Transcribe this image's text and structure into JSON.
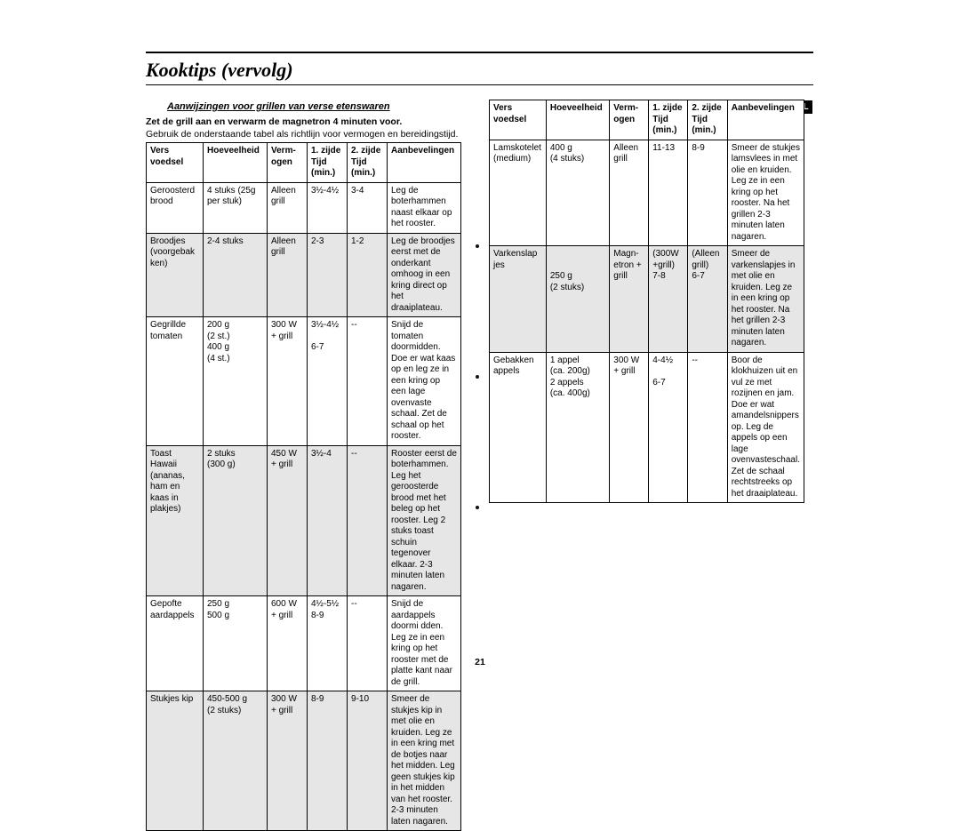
{
  "title": "Kooktips (vervolg)",
  "subheading": "Aanwijzingen voor grillen van verse etenswaren",
  "instruction": "Zet de grill aan en verwarm de magnetron 4 minuten voor.",
  "note": "Gebruik de onderstaande tabel als richtlijn voor vermogen en bereidingstijd.",
  "lang_badge": "NL",
  "page_number": "21",
  "columns": {
    "food": "Vers voedsel",
    "qty": "Hoeveelheid",
    "power": "Verm-ogen",
    "side1": "1. zijde Tijd (min.)",
    "side2": "2. zijde Tijd (min.)",
    "rec": "Aanbevelingen"
  },
  "left_rows": [
    {
      "shade": false,
      "food": "Geroosterd brood",
      "qty": "4 stuks (25g per stuk)",
      "power": "Alleen grill",
      "s1": "3½-4½",
      "s2": "3-4",
      "rec": "Leg de boterhammen naast elkaar op het rooster."
    },
    {
      "shade": true,
      "food": "Broodjes (voorgebak ken)",
      "qty": "2-4 stuks",
      "power": "Alleen grill",
      "s1": "2-3",
      "s2": "1-2",
      "rec": "Leg de broodjes eerst met de onderkant omhoog in een kring direct op het draaiplateau."
    },
    {
      "shade": false,
      "food": "Gegrillde tomaten",
      "qty": "200 g\n(2 st.)\n400 g\n(4 st.)",
      "power": "300 W\n+ grill",
      "s1": "3½-4½\n\n6-7",
      "s2": "--",
      "rec": "Snijd de tomaten doormidden. Doe er wat kaas op en leg ze in een kring op een lage ovenvaste schaal. Zet de schaal op het rooster."
    },
    {
      "shade": true,
      "food": "Toast Hawaii (ananas, ham en kaas in plakjes)",
      "qty": "2 stuks\n(300 g)",
      "power": "450 W\n+ grill",
      "s1": "3½-4",
      "s2": "--",
      "rec": "Rooster eerst de boterhammen. Leg het geroosterde brood met het beleg op het rooster. Leg 2 stuks toast schuin tegenover elkaar. 2-3 minuten laten nagaren."
    },
    {
      "shade": false,
      "food": "Gepofte aardappels",
      "qty": "250 g\n500 g",
      "power": "600 W\n+ grill",
      "s1": "4½-5½\n8-9",
      "s2": "--",
      "rec": "Snijd de aardappels doormi dden. Leg ze in een kring op het rooster met de platte kant naar de grill."
    },
    {
      "shade": true,
      "food": "Stukjes kip",
      "qty": "450-500 g\n(2 stuks)",
      "power": "300 W\n+ grill",
      "s1": "8-9",
      "s2": "9-10",
      "rec": "Smeer de stukjes kip in met olie en kruiden. Leg ze in een kring met de botjes naar het midden. Leg geen stukjes kip in het midden van het rooster. 2-3 minuten laten nagaren."
    }
  ],
  "right_rows": [
    {
      "shade": false,
      "food": "Lamskotelet (medium)",
      "qty": "400 g\n(4 stuks)",
      "power": "Alleen grill",
      "s1": "11-13",
      "s2": "8-9",
      "rec": "Smeer de stukjes lamsvlees in met olie en kruiden. Leg ze in een kring op het rooster. Na het grillen 2-3 minuten laten nagaren."
    },
    {
      "shade": true,
      "food": "Varkenslap jes",
      "qty": "\n\n250 g\n(2 stuks)",
      "power": "Magn-etron + grill",
      "s1": "(300W +grill)\n7-8",
      "s2": "(Alleen grill)\n6-7",
      "rec": "Smeer de varkenslapjes in met olie en kruiden. Leg ze in een kring op het rooster. Na het grillen 2-3 minuten laten nagaren."
    },
    {
      "shade": false,
      "food": "Gebakken appels",
      "qty": "1 appel\n(ca. 200g)\n2 appels\n(ca. 400g)",
      "power": "300 W\n+ grill",
      "s1": "4-4½\n\n6-7",
      "s2": "--",
      "rec": "Boor de klokhuizen uit en vul ze met rozijnen en jam. Doe er wat amandelsnippers op. Leg de appels op een lage ovenvasteschaal. Zet de schaal rechtstreeks op het draaiplateau."
    }
  ]
}
